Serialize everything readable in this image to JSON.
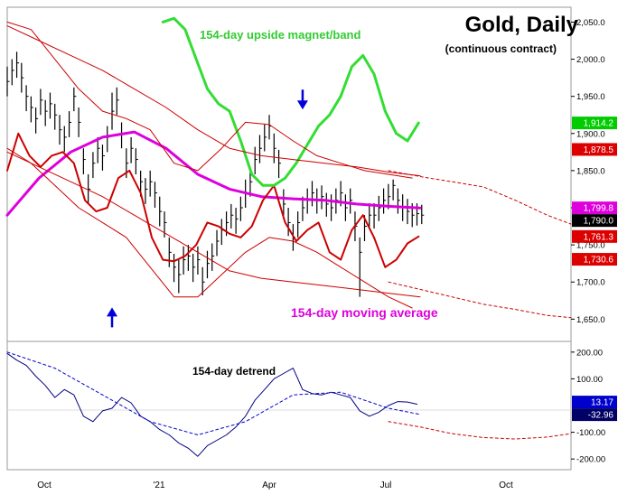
{
  "chart_data": [
    {
      "panel": "price",
      "type": "line",
      "title": "Gold, Daily",
      "subtitle": "(continuous contract)",
      "x_ticks": [
        "Oct",
        "'21",
        "Apr",
        "Jul",
        "Oct"
      ],
      "y_ticks": [
        "2,050.0",
        "2,000.0",
        "1,950.0",
        "1,900.0",
        "1,850.0",
        "1,800.0",
        "1,750.0",
        "1,700.0",
        "1,650.0"
      ],
      "ylim": [
        1620,
        2070
      ],
      "grid": false,
      "price_labels": [
        {
          "value": "1,914.2",
          "y": 1914.2,
          "color": "#00cc00",
          "text_color": "#ffffff"
        },
        {
          "value": "1,878.5",
          "y": 1878.5,
          "color": "#dd0000",
          "text_color": "#ffffff"
        },
        {
          "value": "1,799.8",
          "y": 1799.8,
          "color": "#dd00dd",
          "text_color": "#ffffff"
        },
        {
          "value": "1,790.0",
          "y": 1790.0,
          "color": "#000000",
          "text_color": "#ffffff"
        },
        {
          "value": "1,761.3",
          "y": 1761.3,
          "color": "#dd0000",
          "text_color": "#ffffff"
        },
        {
          "value": "1,730.6",
          "y": 1730.6,
          "color": "#dd0000",
          "text_color": "#ffffff"
        }
      ],
      "annotations": [
        {
          "text": "154-day upside magnet/band",
          "color": "#33cc33"
        },
        {
          "text": "154-day moving average",
          "color": "#dd00dd"
        }
      ],
      "arrows": [
        {
          "direction": "down",
          "x": 186,
          "y": 1942,
          "color": "#0000dd"
        },
        {
          "direction": "up",
          "x": 66,
          "y": 1656,
          "color": "#0000dd"
        }
      ],
      "series": [
        {
          "role": "price_bars",
          "color": "#000000",
          "x": [
            0,
            3,
            6,
            9,
            12,
            15,
            18,
            21,
            24,
            27,
            30,
            33,
            36,
            39,
            42,
            45,
            48,
            51,
            54,
            57,
            60,
            63,
            66,
            69,
            72,
            75,
            78,
            81,
            84,
            87,
            90,
            93,
            96,
            99,
            102,
            105,
            108,
            111,
            114,
            117,
            120,
            123,
            126,
            129,
            132,
            135,
            138,
            141,
            144,
            147,
            150,
            153,
            156,
            159,
            162,
            165,
            168,
            171,
            174,
            177,
            180,
            183,
            186,
            189,
            192,
            195,
            198,
            201,
            204,
            207,
            210,
            213,
            216,
            219,
            222,
            225,
            228,
            231,
            234,
            237,
            240,
            243,
            246,
            249,
            252,
            255,
            258,
            261
          ],
          "values": [
            1970,
            1985,
            1995,
            1975,
            1950,
            1935,
            1920,
            1945,
            1930,
            1940,
            1925,
            1905,
            1895,
            1915,
            1950,
            1915,
            1865,
            1825,
            1860,
            1880,
            1870,
            1895,
            1930,
            1945,
            1900,
            1860,
            1880,
            1865,
            1835,
            1825,
            1835,
            1820,
            1795,
            1780,
            1740,
            1720,
            1710,
            1730,
            1735,
            1720,
            1730,
            1700,
            1725,
            1735,
            1755,
            1770,
            1780,
            1790,
            1785,
            1800,
            1820,
            1835,
            1865,
            1880,
            1895,
            1910,
            1880,
            1860,
            1805,
            1780,
            1760,
            1780,
            1800,
            1810,
            1820,
            1810,
            1815,
            1805,
            1800,
            1810,
            1820,
            1800,
            1810,
            1775,
            1740,
            1775,
            1790,
            1790,
            1800,
            1810,
            1815,
            1830,
            1810,
            1800,
            1795,
            1790,
            1792,
            1790
          ],
          "highs": [
            1990,
            2000,
            2010,
            1995,
            1965,
            1950,
            1935,
            1960,
            1945,
            1955,
            1940,
            1925,
            1910,
            1930,
            1962,
            1935,
            1880,
            1845,
            1875,
            1895,
            1885,
            1910,
            1955,
            1962,
            1915,
            1880,
            1895,
            1880,
            1850,
            1840,
            1850,
            1835,
            1815,
            1795,
            1760,
            1738,
            1730,
            1748,
            1750,
            1738,
            1748,
            1720,
            1742,
            1752,
            1770,
            1785,
            1795,
            1805,
            1800,
            1815,
            1838,
            1852,
            1882,
            1898,
            1912,
            1925,
            1900,
            1878,
            1825,
            1800,
            1778,
            1795,
            1815,
            1826,
            1836,
            1826,
            1830,
            1820,
            1818,
            1826,
            1836,
            1818,
            1826,
            1795,
            1760,
            1790,
            1806,
            1806,
            1816,
            1826,
            1832,
            1838,
            1826,
            1818,
            1812,
            1806,
            1806,
            1804
          ],
          "lows": [
            1950,
            1965,
            1975,
            1955,
            1930,
            1915,
            1900,
            1925,
            1910,
            1920,
            1905,
            1885,
            1875,
            1895,
            1930,
            1895,
            1845,
            1805,
            1840,
            1860,
            1850,
            1875,
            1905,
            1925,
            1880,
            1840,
            1860,
            1845,
            1815,
            1805,
            1815,
            1800,
            1775,
            1760,
            1720,
            1700,
            1685,
            1710,
            1715,
            1700,
            1710,
            1682,
            1705,
            1715,
            1735,
            1750,
            1762,
            1772,
            1765,
            1782,
            1800,
            1815,
            1845,
            1860,
            1876,
            1892,
            1860,
            1840,
            1785,
            1762,
            1742,
            1760,
            1782,
            1792,
            1802,
            1792,
            1798,
            1788,
            1782,
            1792,
            1802,
            1782,
            1792,
            1755,
            1680,
            1755,
            1772,
            1772,
            1782,
            1792,
            1798,
            1810,
            1792,
            1782,
            1778,
            1774,
            1776,
            1778
          ]
        },
        {
          "role": "154-day moving average",
          "color": "#dd00dd",
          "x": [
            0,
            20,
            40,
            60,
            80,
            100,
            120,
            140,
            160,
            180,
            200,
            220,
            240,
            260
          ],
          "values": [
            1790,
            1840,
            1875,
            1895,
            1902,
            1880,
            1845,
            1825,
            1815,
            1812,
            1810,
            1805,
            1802,
            1799.8
          ]
        },
        {
          "role": "cycle_curve",
          "color": "#cc0000",
          "x": [
            0,
            7,
            14,
            21,
            28,
            35,
            42,
            49,
            56,
            63,
            70,
            77,
            84,
            91,
            98,
            105,
            112,
            119,
            126,
            133,
            140,
            147,
            154,
            161,
            168,
            175,
            182,
            189,
            196,
            203,
            210,
            217,
            224,
            231,
            238,
            245,
            252,
            259
          ],
          "values": [
            1850,
            1900,
            1870,
            1855,
            1870,
            1875,
            1860,
            1810,
            1795,
            1800,
            1840,
            1850,
            1820,
            1760,
            1730,
            1728,
            1735,
            1750,
            1780,
            1775,
            1765,
            1760,
            1775,
            1810,
            1830,
            1780,
            1755,
            1770,
            1780,
            1740,
            1730,
            1770,
            1790,
            1760,
            1720,
            1730,
            1752,
            1761.3
          ]
        },
        {
          "role": "154-day upside magnet/band",
          "color": "#33dd33",
          "x": [
            98,
            105,
            112,
            119,
            126,
            133,
            140,
            147,
            154,
            161,
            168,
            175,
            182,
            189,
            196,
            203,
            210,
            217,
            224,
            231,
            238,
            245,
            252,
            259
          ],
          "values": [
            2050,
            2055,
            2040,
            2000,
            1960,
            1940,
            1930,
            1890,
            1845,
            1830,
            1830,
            1840,
            1860,
            1885,
            1910,
            1925,
            1950,
            1990,
            2005,
            1980,
            1930,
            1900,
            1890,
            1914.2
          ]
        },
        {
          "role": "band_upper",
          "color": "#cc0000",
          "x": [
            0,
            20,
            40,
            60,
            80,
            100,
            120,
            140,
            160,
            180,
            200,
            220,
            240,
            260
          ],
          "values": [
            2045,
            2025,
            2005,
            1985,
            1960,
            1935,
            1905,
            1880,
            1870,
            1865,
            1860,
            1855,
            1848,
            1843
          ]
        },
        {
          "role": "band_lower",
          "color": "#cc0000",
          "x": [
            0,
            20,
            40,
            60,
            80,
            100,
            120,
            140,
            160,
            180,
            200,
            220,
            240,
            260
          ],
          "values": [
            1875,
            1855,
            1835,
            1815,
            1790,
            1765,
            1740,
            1715,
            1705,
            1700,
            1695,
            1690,
            1685,
            1680
          ]
        },
        {
          "role": "cycle_envelope_upper",
          "color": "#cc0000",
          "x": [
            0,
            15,
            30,
            45,
            60,
            75,
            90,
            105,
            120,
            135,
            150,
            165,
            180,
            195,
            210,
            225,
            240,
            255
          ],
          "values": [
            2050,
            2040,
            2000,
            1960,
            1930,
            1920,
            1905,
            1860,
            1850,
            1880,
            1915,
            1912,
            1890,
            1870,
            1860,
            1850,
            1845,
            1840
          ]
        },
        {
          "role": "cycle_envelope_lower",
          "color": "#cc0000",
          "x": [
            0,
            15,
            30,
            45,
            60,
            75,
            90,
            105,
            120,
            135,
            150,
            165,
            180,
            195,
            210,
            225,
            240,
            255
          ],
          "values": [
            1880,
            1860,
            1830,
            1800,
            1780,
            1760,
            1720,
            1680,
            1680,
            1710,
            1740,
            1760,
            1755,
            1740,
            1720,
            1700,
            1680,
            1665
          ]
        },
        {
          "role": "projection",
          "color": "#cc0000",
          "dashed": true,
          "x": [
            240,
            260,
            280,
            300,
            320,
            340,
            355
          ],
          "values": [
            1850,
            1842,
            1835,
            1828,
            1810,
            1790,
            1778
          ]
        },
        {
          "role": "projection",
          "color": "#cc0000",
          "dashed": true,
          "x": [
            240,
            260,
            280,
            300,
            320,
            340,
            355
          ],
          "values": [
            1700,
            1690,
            1680,
            1670,
            1663,
            1655,
            1652
          ]
        }
      ]
    },
    {
      "panel": "detrend",
      "type": "line",
      "title": "154-day detrend",
      "y_ticks": [
        "200.00",
        "100.00",
        "-100.00",
        "-200.00"
      ],
      "ylim": [
        -240,
        240
      ],
      "grid": false,
      "price_labels": [
        {
          "value": "13.17",
          "y": 13.17,
          "color": "#0000cc",
          "text_color": "#ffffff"
        },
        {
          "value": "-32.96",
          "y": -32.96,
          "color": "#000066",
          "text_color": "#ffffff"
        }
      ],
      "series": [
        {
          "role": "detrend",
          "color": "#000080",
          "x": [
            0,
            6,
            12,
            18,
            24,
            30,
            36,
            42,
            48,
            54,
            60,
            66,
            72,
            78,
            84,
            90,
            96,
            102,
            108,
            114,
            120,
            126,
            132,
            138,
            144,
            150,
            156,
            162,
            168,
            174,
            180,
            186,
            192,
            198,
            204,
            210,
            216,
            222,
            228,
            234,
            240,
            246,
            252,
            258
          ],
          "values": [
            195,
            170,
            150,
            110,
            75,
            30,
            60,
            40,
            -40,
            -60,
            -20,
            -10,
            30,
            10,
            -40,
            -60,
            -90,
            -110,
            -140,
            -160,
            -190,
            -150,
            -130,
            -110,
            -80,
            -40,
            20,
            60,
            100,
            120,
            140,
            60,
            45,
            40,
            50,
            40,
            30,
            -20,
            -40,
            -25,
            0,
            15,
            13.17,
            5
          ]
        },
        {
          "role": "trend_projection",
          "color": "#0000cc",
          "dashed": true,
          "x": [
            0,
            30,
            60,
            90,
            120,
            150,
            180,
            210,
            240,
            260
          ],
          "values": [
            200,
            140,
            40,
            -60,
            -110,
            -60,
            40,
            50,
            -10,
            -32.96
          ]
        },
        {
          "role": "future_projection",
          "color": "#cc0000",
          "dashed": true,
          "x": [
            240,
            260,
            280,
            300,
            320,
            340,
            355
          ],
          "values": [
            -60,
            -80,
            -105,
            -120,
            -125,
            -118,
            -105
          ]
        }
      ]
    }
  ]
}
